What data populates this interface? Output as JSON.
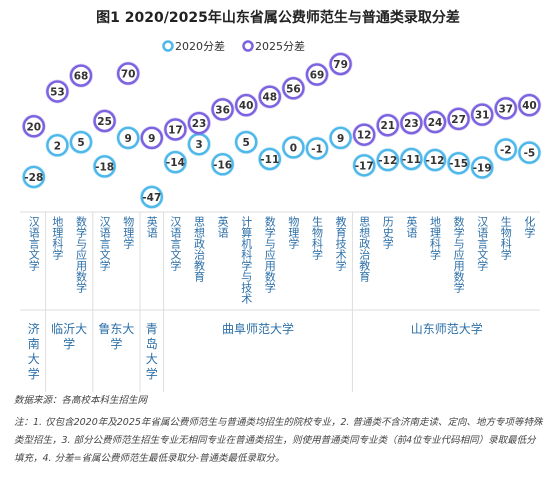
{
  "chart_data": {
    "type": "dot",
    "title": "图1  2020/2025年山东省属公费师范生与普通类录取分差",
    "groups": [
      {
        "name": "济南大学",
        "categories": [
          "汉语言文学"
        ]
      },
      {
        "name": "临沂大学",
        "categories": [
          "地理科学",
          "数学与应用数学"
        ]
      },
      {
        "name": "鲁东大学",
        "categories": [
          "汉语言文学",
          "物理学"
        ]
      },
      {
        "name": "青岛大学",
        "categories": [
          "英语"
        ]
      },
      {
        "name": "曲阜师范大学",
        "categories": [
          "汉语言文学",
          "思想政治教育",
          "英语",
          "计算机科学与技术",
          "数学与应用数学",
          "物理学",
          "生物科学",
          "教育技术学"
        ]
      },
      {
        "name": "山东师范大学",
        "categories": [
          "思想政治教育",
          "历史学",
          "英语",
          "地理科学",
          "数学与应用数学",
          "汉语言文学",
          "生物科学",
          "化学"
        ]
      }
    ],
    "series": [
      {
        "name": "2020分差",
        "color": "#4fb8ea",
        "values": [
          -28,
          2,
          5,
          -18,
          9,
          -47,
          -14,
          3,
          -16,
          5,
          -11,
          0,
          -1,
          9,
          -17,
          -12,
          -11,
          -12,
          -15,
          -19,
          -2,
          -5
        ]
      },
      {
        "name": "2025分差",
        "color": "#7d63e0",
        "values": [
          20,
          53,
          68,
          25,
          70,
          9,
          17,
          23,
          36,
          40,
          48,
          56,
          69,
          79,
          12,
          21,
          23,
          24,
          27,
          31,
          37,
          40
        ]
      }
    ]
  },
  "footnotes": {
    "source": "数据来源：各高校本科生招生网",
    "note": "注：1. 仅包含2020年及2025年省属公费师范生与普通类均招生的院校专业，2. 普通类不含济南走读、定向、地方专项等特殊类型招生，3. 部分公费师范生招生专业无相同专业在普通类招生，则使用普通类同专业类（前4位专业代码相同）录取最低分填充，4. 分差=省属公费师范生最低录取分-普通类最低录取分。"
  }
}
